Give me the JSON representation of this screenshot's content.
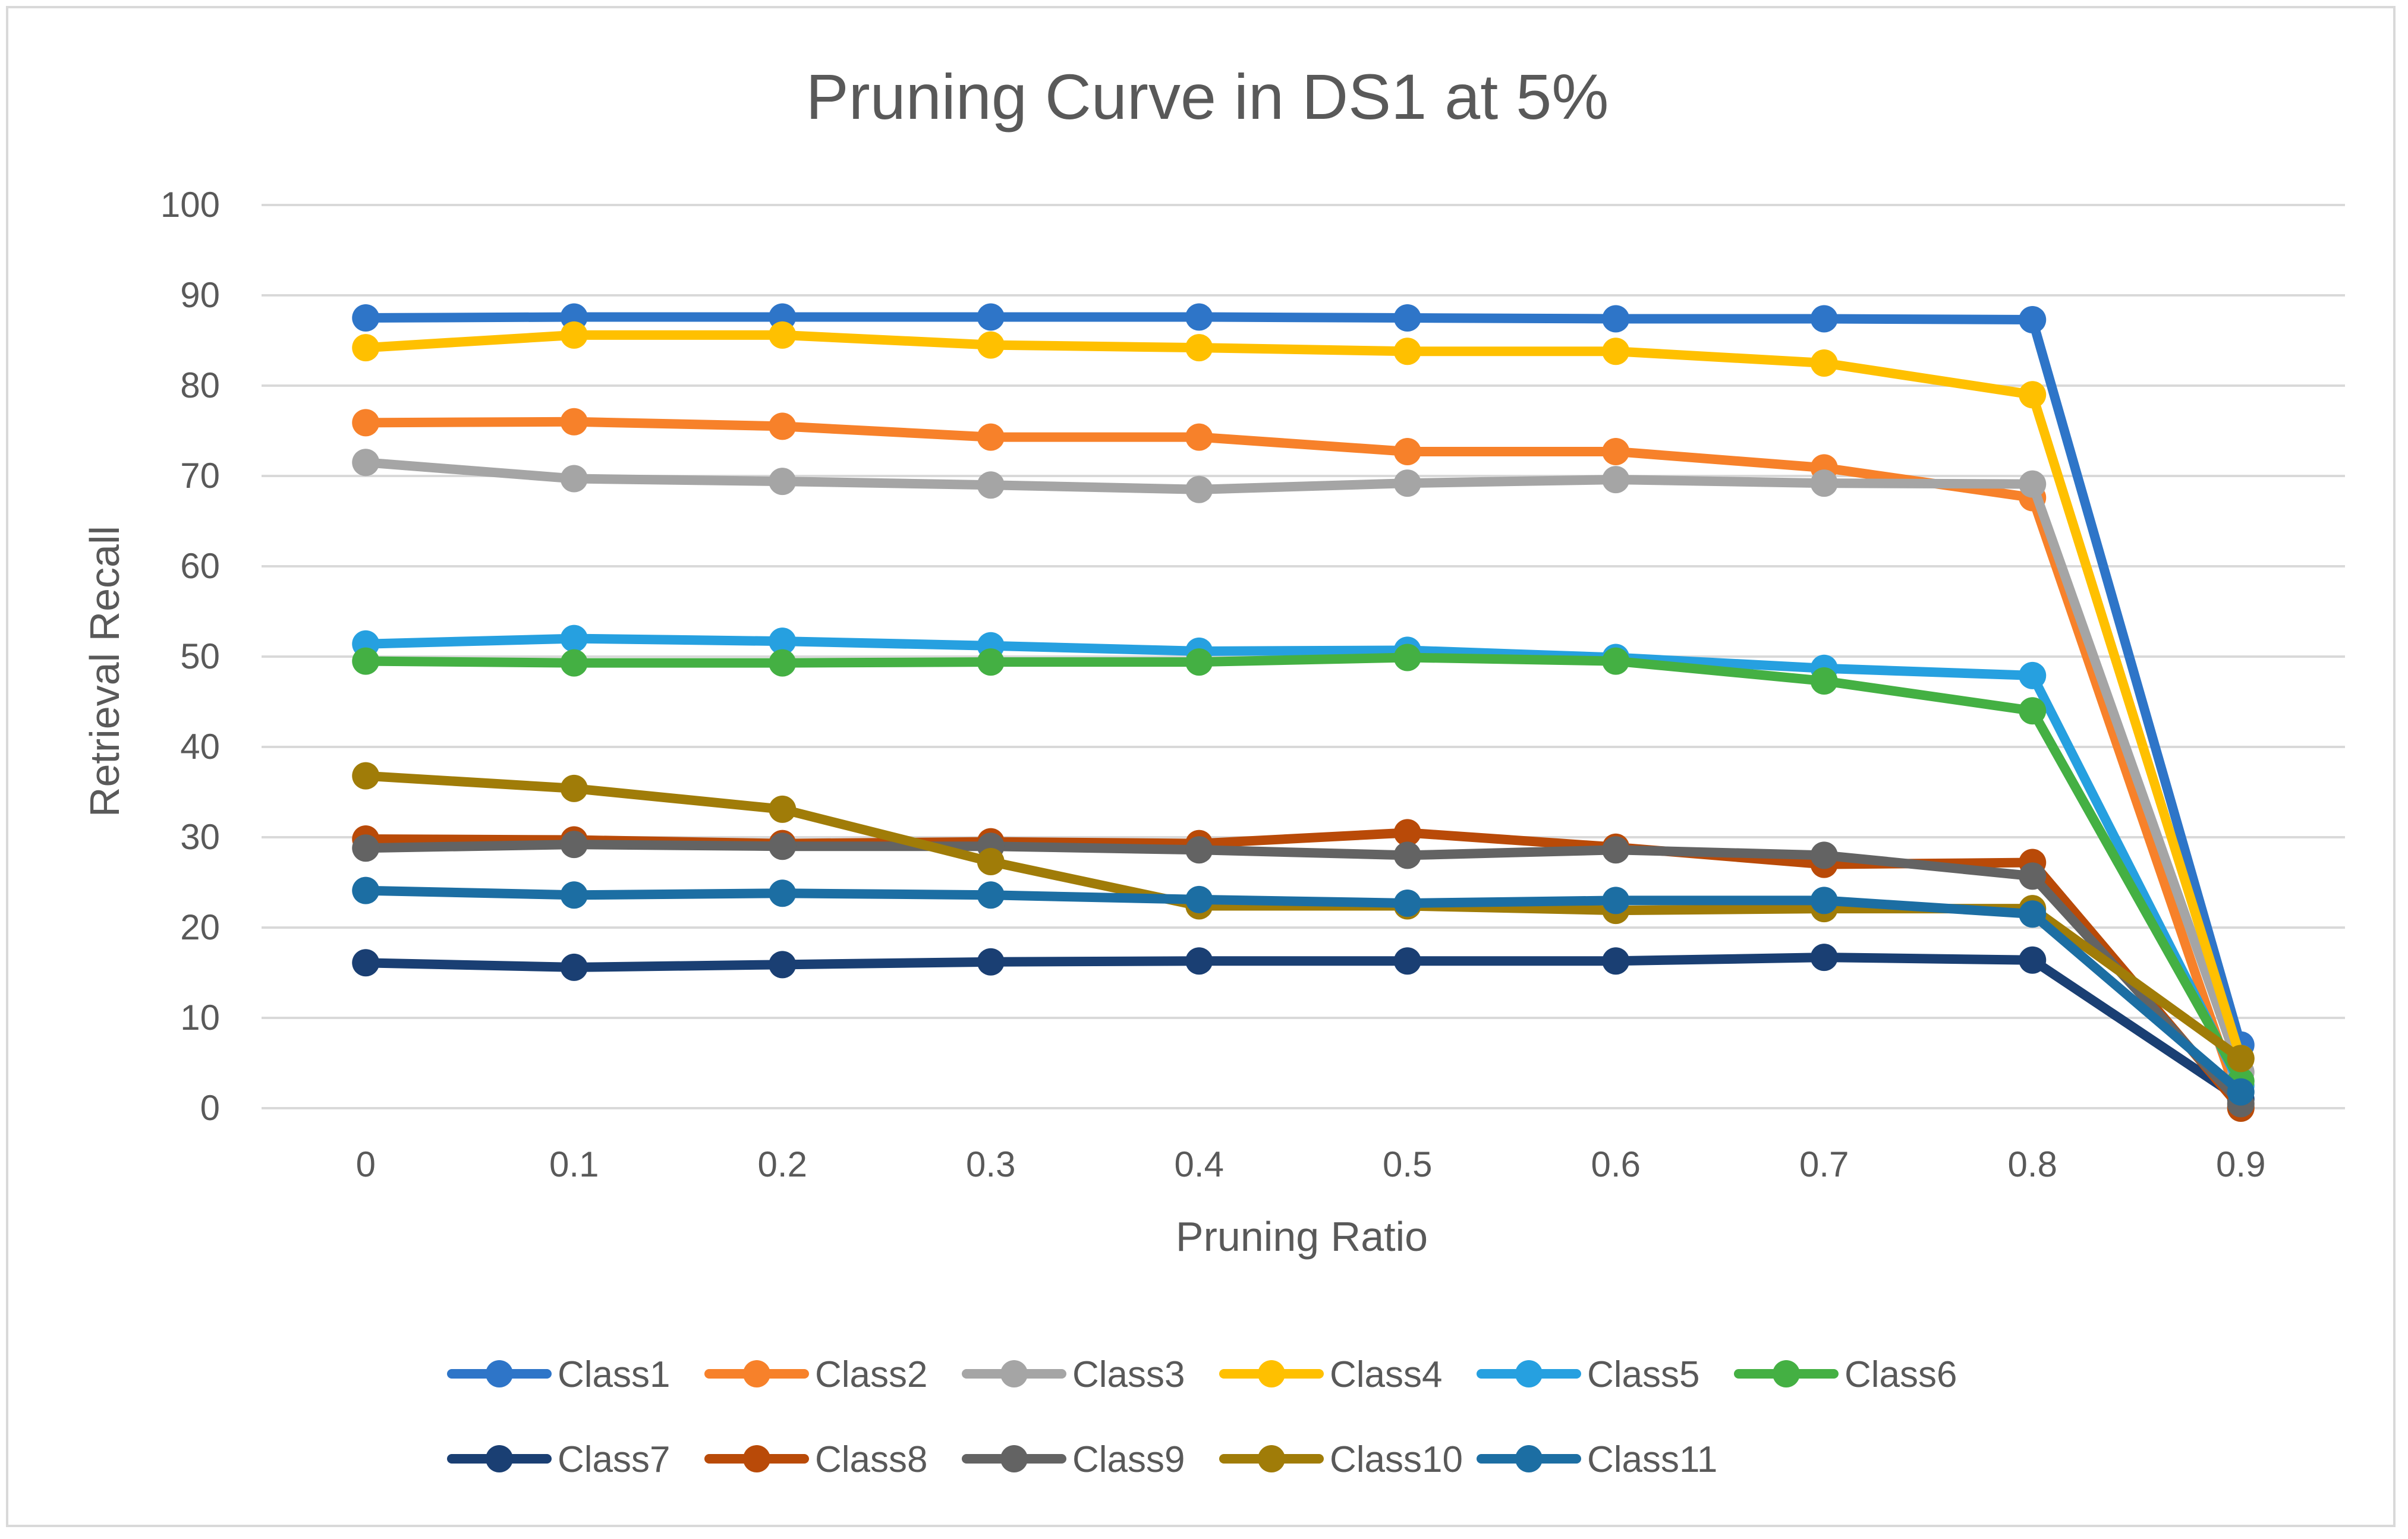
{
  "chart_data": {
    "type": "line",
    "title": "Pruning Curve in DS1 at 5%",
    "xlabel": "Pruning Ratio",
    "ylabel": "Retrieval Recall",
    "x": [
      "0",
      "0.1",
      "0.2",
      "0.3",
      "0.4",
      "0.5",
      "0.6",
      "0.7",
      "0.8",
      "0.9"
    ],
    "ylim": [
      0,
      100
    ],
    "yticks": [
      "0",
      "10",
      "20",
      "30",
      "40",
      "50",
      "60",
      "70",
      "80",
      "90",
      "100"
    ],
    "grid": true,
    "legend": "bottom",
    "series": [
      {
        "name": "Class1",
        "color": "#2e75c8",
        "values": [
          87.5,
          87.6,
          87.6,
          87.6,
          87.6,
          87.5,
          87.4,
          87.4,
          87.3,
          7.0
        ]
      },
      {
        "name": "Class2",
        "color": "#f7812a",
        "values": [
          75.9,
          76.0,
          75.5,
          74.3,
          74.3,
          72.7,
          72.7,
          70.9,
          67.6,
          0.2
        ]
      },
      {
        "name": "Class3",
        "color": "#a5a5a5",
        "values": [
          71.5,
          69.7,
          69.4,
          69.0,
          68.5,
          69.2,
          69.6,
          69.2,
          69.1,
          4.0
        ]
      },
      {
        "name": "Class4",
        "color": "#ffc000",
        "values": [
          84.2,
          85.6,
          85.6,
          84.5,
          84.2,
          83.8,
          83.8,
          82.5,
          79.0,
          5.5
        ]
      },
      {
        "name": "Class5",
        "color": "#26a0e0",
        "values": [
          51.4,
          52.0,
          51.7,
          51.2,
          50.6,
          50.7,
          49.9,
          48.7,
          47.9,
          2.5
        ]
      },
      {
        "name": "Class6",
        "color": "#44b043",
        "values": [
          49.5,
          49.3,
          49.3,
          49.4,
          49.4,
          49.9,
          49.5,
          47.3,
          44.0,
          3.0
        ]
      },
      {
        "name": "Class7",
        "color": "#1a3f73",
        "values": [
          16.1,
          15.6,
          15.9,
          16.2,
          16.3,
          16.3,
          16.3,
          16.7,
          16.4,
          1.0
        ]
      },
      {
        "name": "Class8",
        "color": "#b94a08",
        "values": [
          29.8,
          29.7,
          29.3,
          29.5,
          29.3,
          30.5,
          28.9,
          27.0,
          27.2,
          0.0
        ]
      },
      {
        "name": "Class9",
        "color": "#636363",
        "values": [
          28.8,
          29.2,
          29.0,
          29.0,
          28.6,
          28.0,
          28.6,
          28.0,
          25.7,
          0.5
        ]
      },
      {
        "name": "Class10",
        "color": "#a07c08",
        "values": [
          36.8,
          35.4,
          33.1,
          27.3,
          22.4,
          22.4,
          21.9,
          22.1,
          22.1,
          5.5
        ]
      },
      {
        "name": "Class11",
        "color": "#1c6ea3",
        "values": [
          24.1,
          23.6,
          23.8,
          23.6,
          23.1,
          22.7,
          23.0,
          23.0,
          21.5,
          1.8
        ]
      }
    ]
  }
}
